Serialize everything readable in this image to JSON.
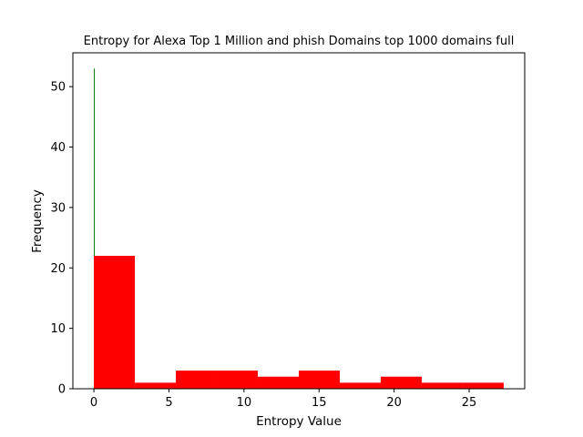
{
  "chart_data": {
    "type": "histogram",
    "title": "Entropy for Alexa Top 1 Million and phish Domains top 1000 domains full",
    "xlabel": "Entropy Value",
    "ylabel": "Frequency",
    "xlim": [
      -1.4,
      28.7
    ],
    "ylim": [
      0,
      55.6
    ],
    "xticks": [
      0,
      5,
      10,
      15,
      20,
      25
    ],
    "yticks": [
      0,
      10,
      20,
      30,
      40,
      50
    ],
    "grid": false,
    "legend": "none",
    "series": [
      {
        "color": "#008000",
        "bins": [
          {
            "x0": 0.0,
            "x1": 0.05,
            "count": 53
          }
        ]
      },
      {
        "color": "#ff0000",
        "bins": [
          {
            "x0": 0.0,
            "x1": 2.73,
            "count": 22
          },
          {
            "x0": 2.73,
            "x1": 5.46,
            "count": 1
          },
          {
            "x0": 5.46,
            "x1": 8.19,
            "count": 3
          },
          {
            "x0": 8.19,
            "x1": 10.92,
            "count": 3
          },
          {
            "x0": 10.92,
            "x1": 13.65,
            "count": 2
          },
          {
            "x0": 13.65,
            "x1": 16.38,
            "count": 3
          },
          {
            "x0": 16.38,
            "x1": 19.11,
            "count": 1
          },
          {
            "x0": 19.11,
            "x1": 21.84,
            "count": 2
          },
          {
            "x0": 21.84,
            "x1": 24.57,
            "count": 1
          },
          {
            "x0": 24.57,
            "x1": 27.3,
            "count": 1
          }
        ]
      }
    ]
  }
}
